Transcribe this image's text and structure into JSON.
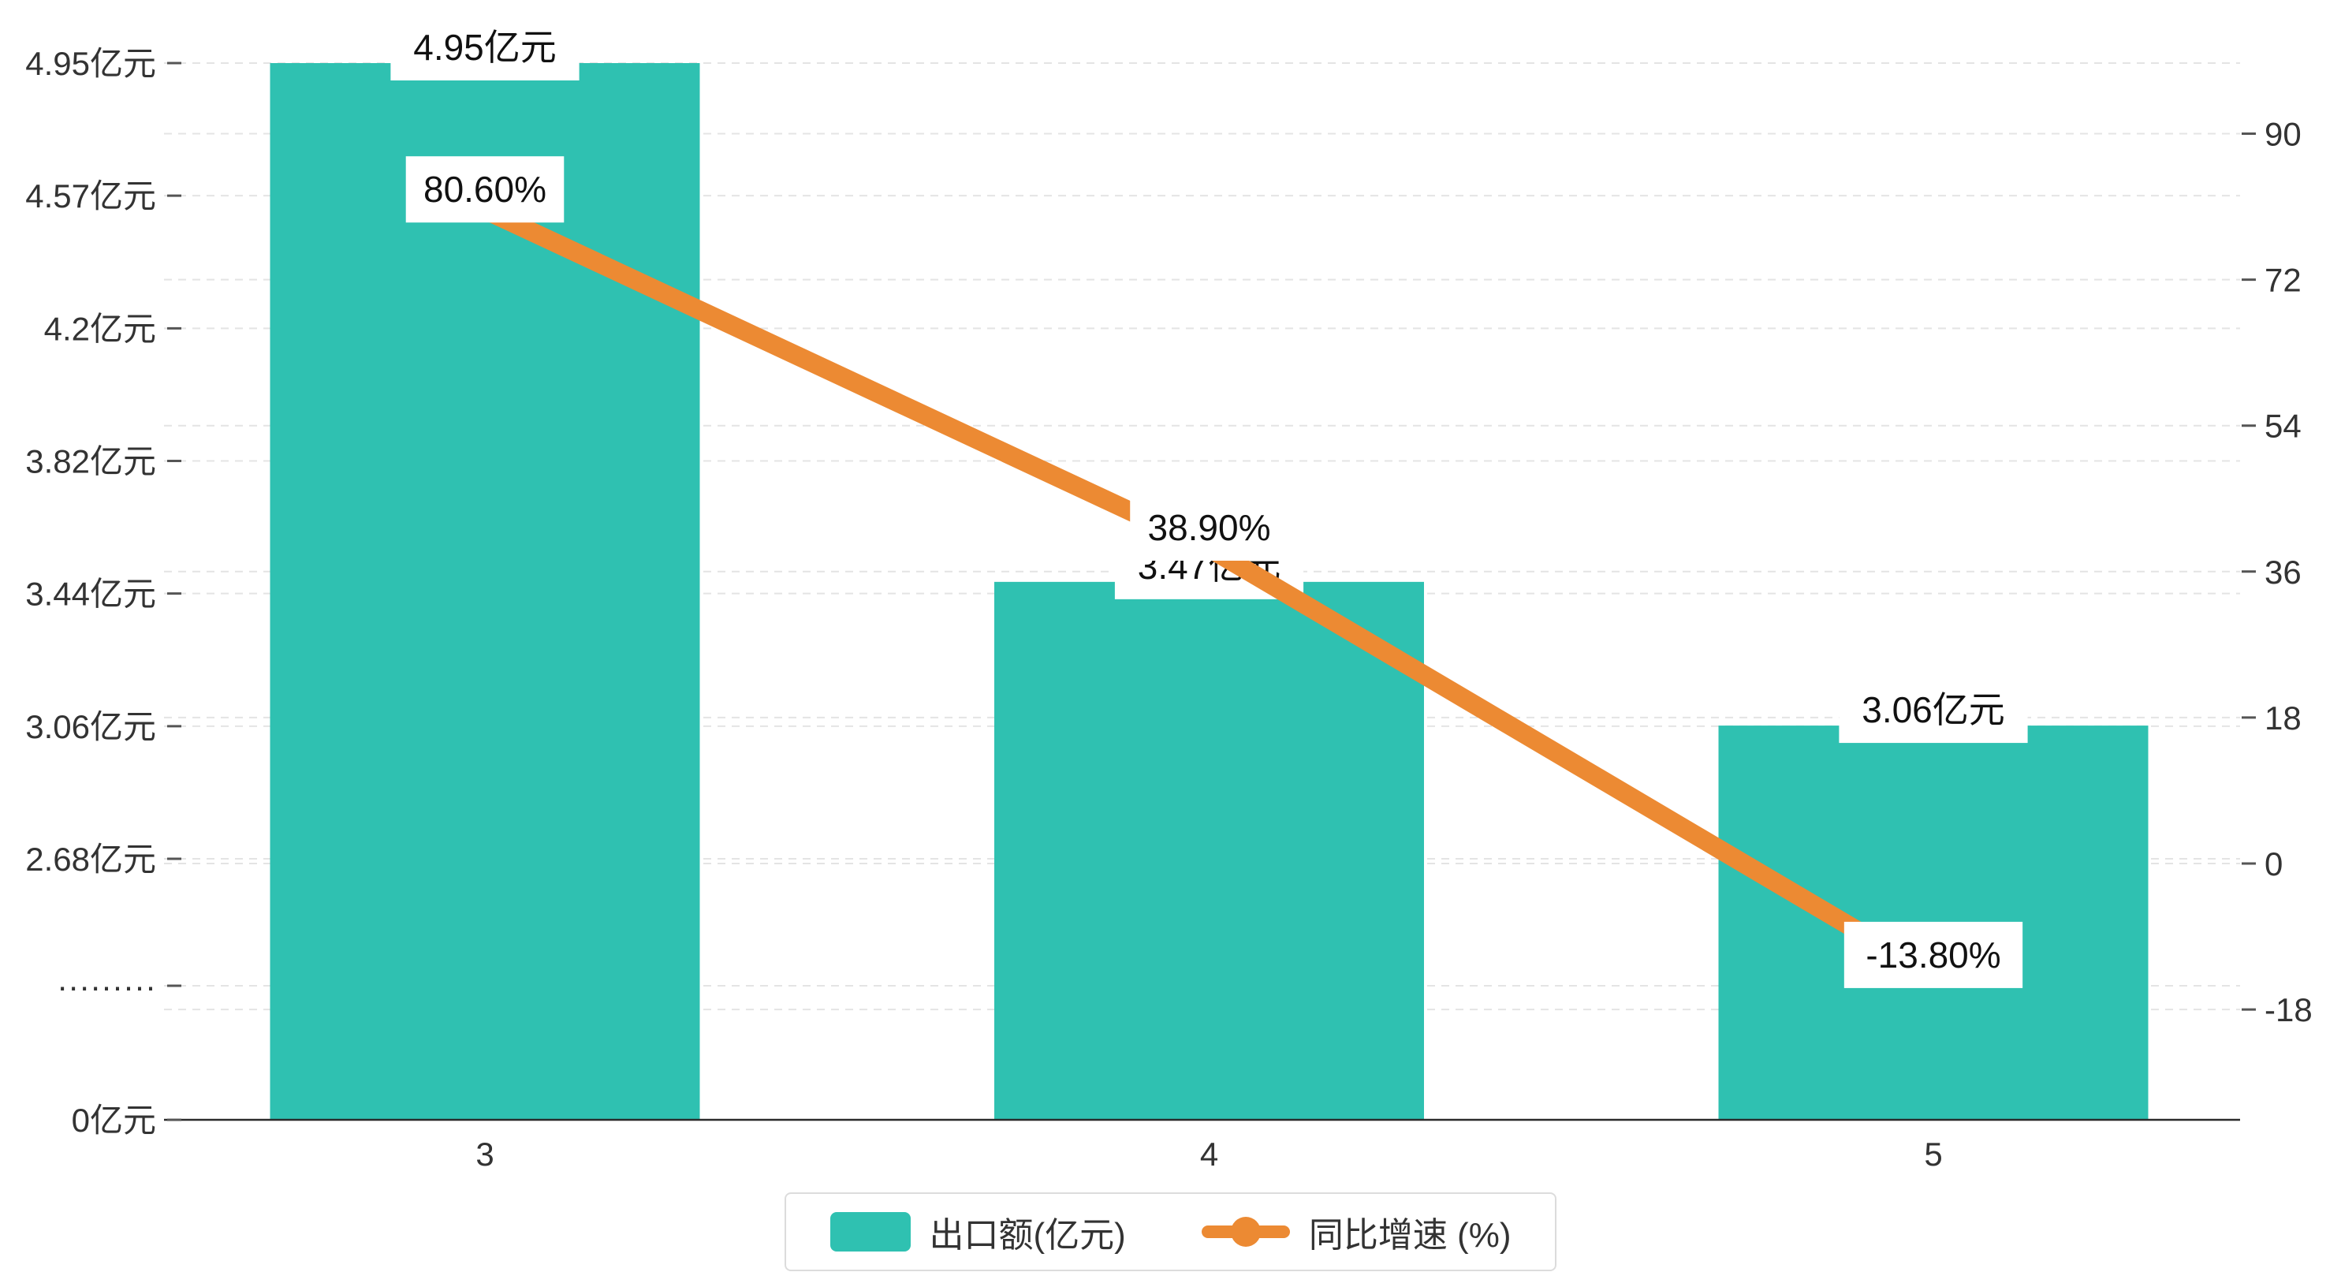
{
  "chart_data": {
    "type": "bar",
    "subtype": "bar-line-combo",
    "categories": [
      "3",
      "4",
      "5"
    ],
    "series": [
      {
        "name": "出口额(亿元)",
        "type": "bar",
        "color": "#2fc1b1",
        "values": [
          4.95,
          3.47,
          3.06
        ],
        "labels": [
          "4.95亿元",
          "3.47亿元",
          "3.06亿元"
        ]
      },
      {
        "name": "同比增速 (%)",
        "type": "line",
        "color": "#ec8a33",
        "values": [
          80.6,
          38.9,
          -13.8
        ],
        "labels": [
          "80.60%",
          "38.90%",
          "-13.80%"
        ]
      }
    ],
    "left_axis_ticks": [
      "4.95亿元",
      "4.57亿元",
      "4.2亿元",
      "3.82亿元",
      "3.44亿元",
      "3.06亿元",
      "2.68亿元",
      "·········",
      "0亿元"
    ],
    "right_axis_ticks": [
      "90",
      "72",
      "54",
      "36",
      "18",
      "0",
      "-18"
    ],
    "right_axis_range": [
      -18,
      90
    ],
    "left_axis_top_value": 4.95,
    "left_axis_break_value": 2.68,
    "grid": "dashed-horizontal",
    "legend_position": "bottom",
    "colors": {
      "bar": "#2fc1b1",
      "line": "#ec8a33",
      "gridline": "#e4e4e4",
      "axis": "#333333",
      "label_text": "#111111",
      "label_bg": "#ffffff"
    }
  }
}
